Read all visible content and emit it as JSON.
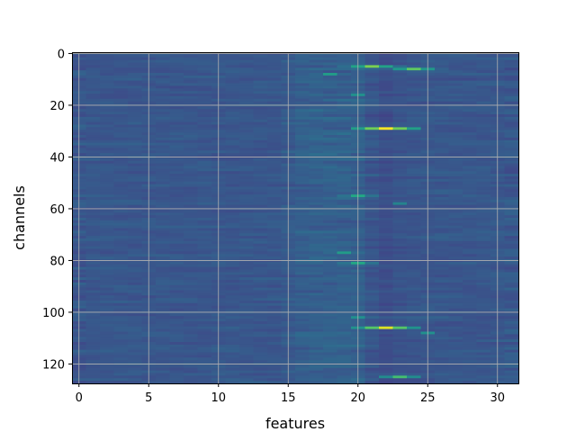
{
  "chart_data": {
    "type": "heatmap",
    "xlabel": "features",
    "ylabel": "channels",
    "x_range": [
      -0.5,
      31.5
    ],
    "y_range": [
      127.5,
      -0.5
    ],
    "x_ticks": [
      "0",
      "5",
      "10",
      "15",
      "20",
      "25",
      "30"
    ],
    "y_ticks": [
      "0",
      "20",
      "40",
      "60",
      "80",
      "100",
      "120"
    ],
    "grid": true,
    "colormap": "viridis",
    "n_channels": 128,
    "n_features": 32,
    "bright_cells": [
      {
        "channel": 5,
        "feature": 21,
        "value": 0.8
      },
      {
        "channel": 6,
        "feature": 24,
        "value": 0.75
      },
      {
        "channel": 8,
        "feature": 18,
        "value": 0.55
      },
      {
        "channel": 16,
        "feature": 20,
        "value": 0.5
      },
      {
        "channel": 29,
        "feature": 22,
        "value": 1.0
      },
      {
        "channel": 55,
        "feature": 20,
        "value": 0.6
      },
      {
        "channel": 58,
        "feature": 23,
        "value": 0.45
      },
      {
        "channel": 77,
        "feature": 19,
        "value": 0.55
      },
      {
        "channel": 81,
        "feature": 20,
        "value": 0.6
      },
      {
        "channel": 102,
        "feature": 20,
        "value": 0.5
      },
      {
        "channel": 106,
        "feature": 22,
        "value": 0.95
      },
      {
        "channel": 108,
        "feature": 25,
        "value": 0.5
      },
      {
        "channel": 125,
        "feature": 23,
        "value": 0.7
      }
    ],
    "dark_band_feature": 22
  }
}
